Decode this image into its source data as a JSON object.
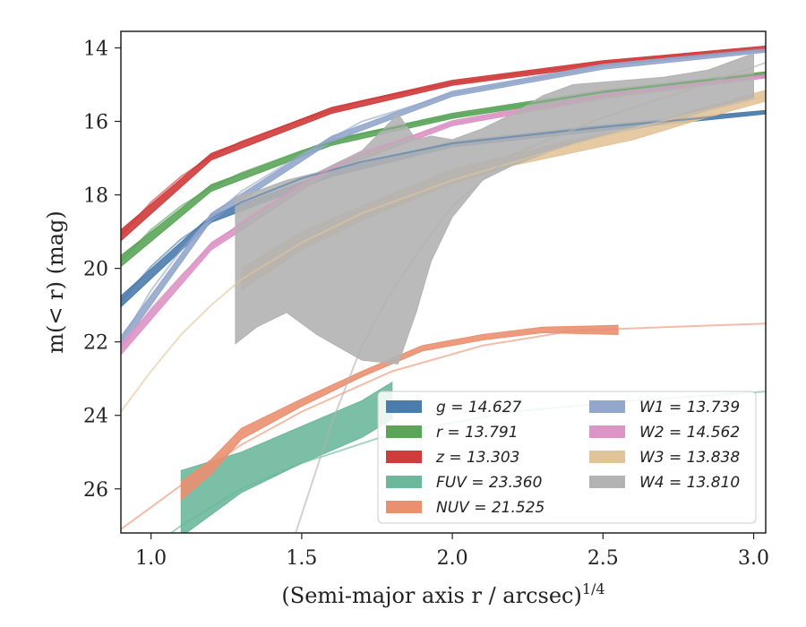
{
  "chart_data": {
    "type": "line",
    "xlabel": "(Semi-major axis r / arcsec)",
    "xlabel_exponent": "1/4",
    "ylabel": "m(< r) (mag)",
    "xlim": [
      0.9,
      3.04
    ],
    "ylim": [
      27.2,
      13.55
    ],
    "y_inverted": true,
    "x_ticks": [
      "1.0",
      "1.5",
      "2.0",
      "2.5",
      "3.0"
    ],
    "y_ticks": [
      "14",
      "16",
      "18",
      "20",
      "22",
      "24",
      "26"
    ],
    "grid": false,
    "legend_position": "lower-right",
    "series": [
      {
        "name": "g = 14.627",
        "color": "#4c7cad",
        "model": [
          [
            0.9,
            20.9
          ],
          [
            1.0,
            19.95
          ],
          [
            1.1,
            19.2
          ],
          [
            1.2,
            18.65
          ],
          [
            1.3,
            18.2
          ],
          [
            1.5,
            17.55
          ],
          [
            1.7,
            17.1
          ],
          [
            2.0,
            16.6
          ],
          [
            2.5,
            16.15
          ],
          [
            3.04,
            15.75
          ]
        ],
        "band": [
          [
            0.9,
            20.75,
            21.05
          ],
          [
            1.2,
            18.55,
            18.75
          ],
          [
            1.6,
            17.35,
            17.5
          ],
          [
            2.0,
            16.55,
            16.7
          ],
          [
            2.5,
            16.1,
            16.25
          ],
          [
            3.04,
            15.7,
            15.8
          ]
        ]
      },
      {
        "name": "r = 13.791",
        "color": "#5aa55a",
        "model": [
          [
            0.9,
            19.8
          ],
          [
            1.0,
            18.95
          ],
          [
            1.1,
            18.3
          ],
          [
            1.2,
            17.8
          ],
          [
            1.3,
            17.4
          ],
          [
            1.5,
            16.8
          ],
          [
            1.7,
            16.35
          ],
          [
            2.0,
            15.85
          ],
          [
            2.5,
            15.2
          ],
          [
            3.04,
            14.7
          ]
        ],
        "band": [
          [
            0.9,
            19.65,
            19.95
          ],
          [
            1.2,
            17.72,
            17.9
          ],
          [
            1.6,
            16.5,
            16.65
          ],
          [
            2.0,
            15.78,
            15.92
          ],
          [
            2.5,
            15.15,
            15.28
          ],
          [
            3.04,
            14.65,
            14.78
          ]
        ]
      },
      {
        "name": "z = 13.303",
        "color": "#d03b3b",
        "model": [
          [
            0.9,
            19.1
          ],
          [
            1.0,
            18.2
          ],
          [
            1.1,
            17.5
          ],
          [
            1.2,
            16.95
          ],
          [
            1.3,
            16.55
          ],
          [
            1.5,
            15.95
          ],
          [
            1.7,
            15.45
          ],
          [
            2.0,
            14.95
          ],
          [
            2.5,
            14.4
          ],
          [
            3.04,
            14.0
          ]
        ],
        "band": [
          [
            0.9,
            18.95,
            19.25
          ],
          [
            1.2,
            16.87,
            17.05
          ],
          [
            1.6,
            15.62,
            15.78
          ],
          [
            2.0,
            14.88,
            15.02
          ],
          [
            2.5,
            14.35,
            14.48
          ],
          [
            3.04,
            13.95,
            14.08
          ]
        ]
      },
      {
        "name": "FUV = 23.360",
        "color": "#6bb89c",
        "model": [
          [
            0.9,
            28.2
          ],
          [
            1.1,
            27.0
          ],
          [
            1.3,
            26.0
          ],
          [
            1.5,
            25.3
          ],
          [
            1.8,
            24.5
          ],
          [
            2.2,
            23.9
          ],
          [
            2.6,
            23.6
          ],
          [
            3.04,
            23.35
          ]
        ],
        "band": [
          [
            1.1,
            25.5,
            27.3
          ],
          [
            1.3,
            25.0,
            26.1
          ],
          [
            1.5,
            24.3,
            25.3
          ],
          [
            1.7,
            23.6,
            24.6
          ],
          [
            1.8,
            23.1,
            24.1
          ]
        ]
      },
      {
        "name": "NUV = 21.525",
        "color": "#ea9070",
        "model": [
          [
            0.9,
            27.1
          ],
          [
            1.1,
            25.9
          ],
          [
            1.3,
            24.8
          ],
          [
            1.5,
            23.9
          ],
          [
            1.8,
            22.8
          ],
          [
            2.1,
            22.1
          ],
          [
            2.4,
            21.7
          ],
          [
            2.7,
            21.6
          ],
          [
            3.04,
            21.5
          ]
        ],
        "band": [
          [
            1.1,
            25.8,
            26.3
          ],
          [
            1.2,
            25.2,
            25.6
          ],
          [
            1.3,
            24.35,
            24.65
          ],
          [
            1.5,
            23.55,
            23.75
          ],
          [
            1.7,
            22.8,
            22.95
          ],
          [
            1.9,
            22.1,
            22.25
          ],
          [
            2.1,
            21.8,
            21.95
          ],
          [
            2.3,
            21.6,
            21.75
          ],
          [
            2.55,
            21.55,
            21.8
          ]
        ]
      },
      {
        "name": "W1 = 13.739",
        "color": "#93a7cb",
        "model": [
          [
            0.9,
            22.0
          ],
          [
            1.0,
            20.6
          ],
          [
            1.1,
            19.5
          ],
          [
            1.2,
            18.6
          ],
          [
            1.3,
            17.9
          ],
          [
            1.5,
            16.9
          ],
          [
            1.7,
            16.0
          ],
          [
            2.0,
            15.25
          ],
          [
            2.5,
            14.5
          ],
          [
            3.04,
            14.05
          ]
        ],
        "band": [
          [
            0.9,
            21.85,
            22.15
          ],
          [
            1.2,
            18.5,
            18.7
          ],
          [
            1.6,
            16.4,
            16.55
          ],
          [
            2.0,
            15.18,
            15.32
          ],
          [
            2.5,
            14.45,
            14.58
          ],
          [
            3.04,
            14.0,
            14.12
          ]
        ]
      },
      {
        "name": "W2 = 14.562",
        "color": "#dc95c4",
        "model": [
          [
            0.9,
            22.2
          ],
          [
            1.0,
            21.1
          ],
          [
            1.1,
            20.2
          ],
          [
            1.2,
            19.4
          ],
          [
            1.3,
            18.75
          ],
          [
            1.5,
            17.7
          ],
          [
            1.7,
            16.85
          ],
          [
            2.0,
            16.05
          ],
          [
            2.5,
            15.3
          ],
          [
            3.04,
            14.75
          ]
        ],
        "band": [
          [
            0.9,
            22.05,
            22.35
          ],
          [
            1.2,
            19.3,
            19.5
          ],
          [
            1.6,
            17.2,
            17.35
          ],
          [
            2.0,
            15.98,
            16.12
          ],
          [
            2.5,
            15.25,
            15.38
          ],
          [
            3.04,
            14.7,
            14.82
          ]
        ]
      },
      {
        "name": "W3 = 13.838",
        "color": "#e2c49a",
        "model": [
          [
            0.9,
            23.9
          ],
          [
            1.0,
            22.8
          ],
          [
            1.1,
            21.8
          ],
          [
            1.2,
            21.0
          ],
          [
            1.3,
            20.3
          ],
          [
            1.5,
            19.3
          ],
          [
            1.7,
            18.5
          ],
          [
            2.0,
            17.6
          ],
          [
            2.5,
            16.4
          ],
          [
            3.04,
            15.3
          ]
        ],
        "band": [
          [
            1.3,
            20.0,
            20.6
          ],
          [
            1.5,
            19.0,
            19.5
          ],
          [
            1.7,
            18.3,
            18.7
          ],
          [
            2.0,
            17.3,
            17.7
          ],
          [
            2.2,
            16.9,
            17.2
          ],
          [
            2.4,
            16.5,
            16.85
          ],
          [
            2.6,
            16.2,
            16.5
          ],
          [
            2.8,
            15.7,
            16.0
          ],
          [
            3.04,
            15.15,
            15.45
          ]
        ]
      },
      {
        "name": "W4 = 13.810",
        "color": "#b3b3b3",
        "model": [
          [
            1.48,
            27.2
          ],
          [
            1.6,
            24.2
          ],
          [
            1.7,
            22.1
          ],
          [
            1.8,
            20.6
          ],
          [
            1.9,
            19.4
          ],
          [
            2.0,
            18.3
          ],
          [
            2.2,
            16.9
          ],
          [
            2.5,
            15.9
          ],
          [
            2.8,
            15.1
          ],
          [
            3.04,
            14.4
          ]
        ],
        "band": [
          [
            1.28,
            18.05,
            22.05
          ],
          [
            1.35,
            17.9,
            21.6
          ],
          [
            1.45,
            17.6,
            21.2
          ],
          [
            1.55,
            17.4,
            21.8
          ],
          [
            1.7,
            16.8,
            22.5
          ],
          [
            1.82,
            15.8,
            22.6
          ],
          [
            1.88,
            16.5,
            21.2
          ],
          [
            1.93,
            16.4,
            19.8
          ],
          [
            2.0,
            16.5,
            18.6
          ],
          [
            2.1,
            16.2,
            17.6
          ],
          [
            2.2,
            15.8,
            17.2
          ],
          [
            2.3,
            15.3,
            16.9
          ],
          [
            2.4,
            15.0,
            16.6
          ],
          [
            2.55,
            14.9,
            16.3
          ],
          [
            2.7,
            14.8,
            16.05
          ],
          [
            2.85,
            14.6,
            15.7
          ],
          [
            3.0,
            14.15,
            15.4
          ]
        ]
      }
    ]
  }
}
